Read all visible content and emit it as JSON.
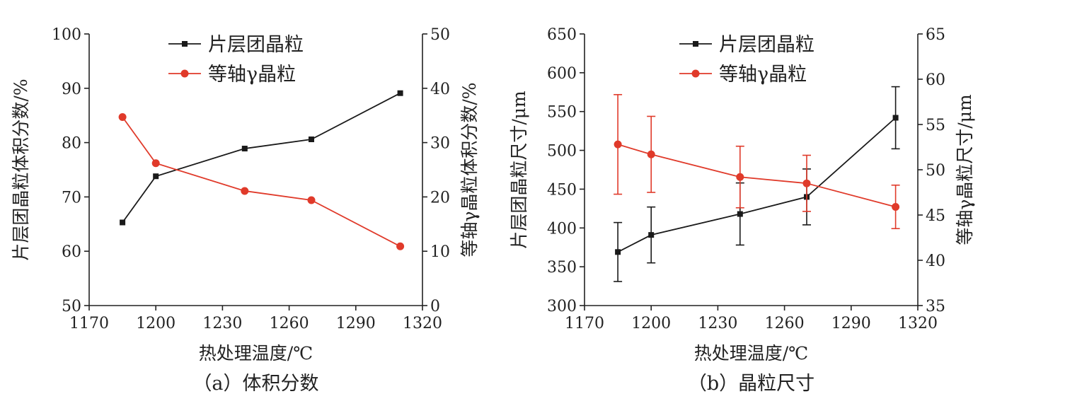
{
  "colors": {
    "lamellar": "#1a1a1a",
    "equiaxed": "#e03a2a",
    "axis": "#222222"
  },
  "chart_data": [
    {
      "type": "line",
      "caption": "（a）体积分数",
      "xlabel": "热处理温度/℃",
      "ylabel_left": "片层团晶粒体积分数/%",
      "ylabel_right": "等轴γ晶粒体积分数/%",
      "xlim": [
        1170,
        1320
      ],
      "xticks": [
        "1170",
        "1200",
        "1230",
        "1260",
        "1290",
        "1320"
      ],
      "ylim_left": [
        50,
        100
      ],
      "yticks_left": [
        "50",
        "60",
        "70",
        "80",
        "90",
        "100"
      ],
      "ylim_right": [
        0,
        50
      ],
      "yticks_right": [
        "0",
        "10",
        "20",
        "30",
        "40",
        "50"
      ],
      "legend_position": "top-center",
      "series": [
        {
          "name": "片层团晶粒",
          "axis": "left",
          "marker": "square",
          "x": [
            1185,
            1200,
            1240,
            1270,
            1310
          ],
          "y": [
            65.3,
            73.8,
            78.9,
            80.6,
            89.1
          ]
        },
        {
          "name": "等轴γ晶粒",
          "axis": "right",
          "marker": "circle",
          "x": [
            1185,
            1200,
            1240,
            1270,
            1310
          ],
          "y": [
            34.7,
            26.2,
            21.1,
            19.4,
            10.9
          ]
        }
      ]
    },
    {
      "type": "line",
      "caption": "（b）晶粒尺寸",
      "xlabel": "热处理温度/℃",
      "ylabel_left": "片层团晶粒尺寸/μm",
      "ylabel_right": "等轴γ晶粒尺寸/μm",
      "xlim": [
        1170,
        1320
      ],
      "xticks": [
        "1170",
        "1200",
        "1230",
        "1260",
        "1290",
        "1320"
      ],
      "ylim_left": [
        300,
        650
      ],
      "yticks_left": [
        "300",
        "350",
        "400",
        "450",
        "500",
        "550",
        "600",
        "650"
      ],
      "ylim_right": [
        35,
        65
      ],
      "yticks_right": [
        "35",
        "40",
        "45",
        "50",
        "55",
        "60",
        "65"
      ],
      "legend_position": "top-center",
      "series": [
        {
          "name": "片层团晶粒",
          "axis": "left",
          "marker": "square",
          "x": [
            1185,
            1200,
            1240,
            1270,
            1310
          ],
          "y": [
            369,
            391,
            418,
            440,
            542
          ],
          "err": [
            38,
            36,
            40,
            36,
            40
          ]
        },
        {
          "name": "等轴γ晶粒",
          "axis": "right",
          "marker": "circle",
          "x": [
            1185,
            1200,
            1240,
            1270,
            1310
          ],
          "y": [
            52.8,
            51.7,
            49.2,
            48.5,
            45.9
          ],
          "err": [
            5.5,
            4.2,
            3.4,
            3.1,
            2.4
          ]
        }
      ]
    }
  ]
}
